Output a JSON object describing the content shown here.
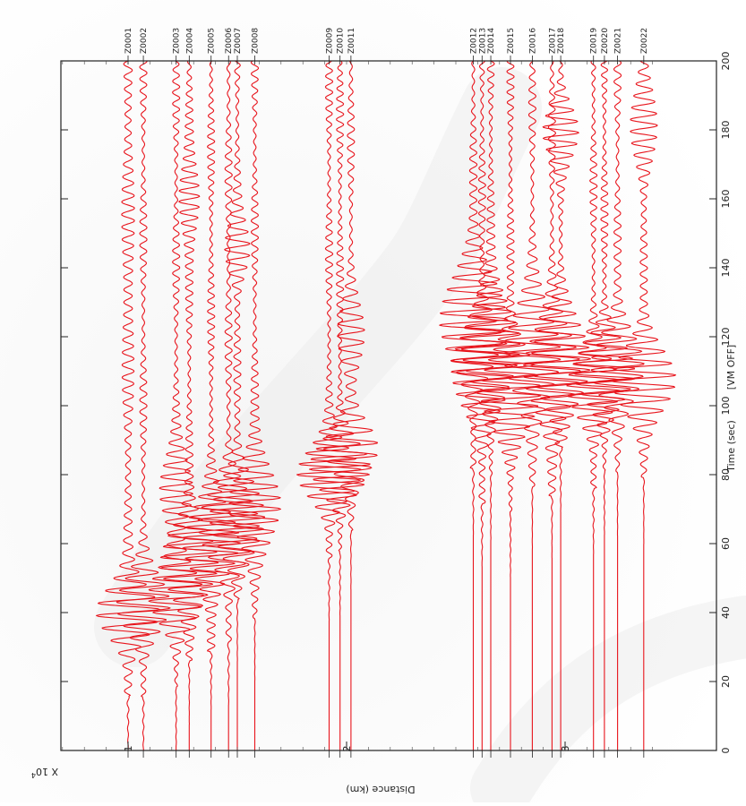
{
  "chart_data": {
    "type": "line",
    "orientation": "rotated-90: time runs vertically (bottom=0, top=200), traces are vertical wiggles positioned by distance",
    "time_axis": {
      "label": "Time (sec)",
      "annotation": "[VM OFF]",
      "range": [
        0,
        200
      ],
      "ticks": [
        0,
        20,
        40,
        60,
        80,
        100,
        120,
        140,
        160,
        180,
        200
      ]
    },
    "distance_axis": {
      "label": "Distance (km)",
      "multiplier_label": "X 10^4",
      "multiplier_text": "X 10",
      "multiplier_exp": "4",
      "ticks": [
        {
          "label": "1",
          "value": 1
        },
        {
          "label": "2",
          "value": 2
        },
        {
          "label": "3",
          "value": 3
        }
      ]
    },
    "line_color": "#e8141c",
    "series": [
      {
        "name": "Z0001",
        "distance": 1.0,
        "packets": [
          {
            "t": 40,
            "amp": 1.0,
            "width": 10
          },
          {
            "t": 140,
            "amp": 0.1,
            "width": 60
          }
        ]
      },
      {
        "name": "Z0002",
        "distance": 1.07,
        "packets": [
          {
            "t": 42,
            "amp": 0.8,
            "width": 11
          }
        ]
      },
      {
        "name": "Z0003",
        "distance": 1.22,
        "packets": [
          {
            "t": 45,
            "amp": 0.8,
            "width": 11
          },
          {
            "t": 75,
            "amp": 0.5,
            "width": 12
          }
        ]
      },
      {
        "name": "Z0004",
        "distance": 1.28,
        "packets": [
          {
            "t": 55,
            "amp": 0.9,
            "width": 13
          },
          {
            "t": 160,
            "amp": 0.3,
            "width": 12
          }
        ]
      },
      {
        "name": "Z0005",
        "distance": 1.38,
        "packets": [
          {
            "t": 60,
            "amp": 0.9,
            "width": 13
          }
        ]
      },
      {
        "name": "Z0006",
        "distance": 1.46,
        "packets": [
          {
            "t": 65,
            "amp": 0.9,
            "width": 14
          }
        ]
      },
      {
        "name": "Z0007",
        "distance": 1.5,
        "packets": [
          {
            "t": 68,
            "amp": 0.8,
            "width": 14
          },
          {
            "t": 145,
            "amp": 0.35,
            "width": 10
          }
        ]
      },
      {
        "name": "Z0008",
        "distance": 1.58,
        "packets": [
          {
            "t": 72,
            "amp": 0.8,
            "width": 14
          }
        ]
      },
      {
        "name": "Z0009",
        "distance": 1.92,
        "packets": [
          {
            "t": 80,
            "amp": 1.0,
            "width": 10
          }
        ]
      },
      {
        "name": "Z0010",
        "distance": 1.97,
        "packets": [
          {
            "t": 82,
            "amp": 0.9,
            "width": 10
          }
        ]
      },
      {
        "name": "Z0011",
        "distance": 2.02,
        "packets": [
          {
            "t": 88,
            "amp": 0.8,
            "width": 10
          },
          {
            "t": 120,
            "amp": 0.35,
            "width": 12
          }
        ]
      },
      {
        "name": "Z0012",
        "distance": 2.58,
        "packets": [
          {
            "t": 125,
            "amp": 1.0,
            "width": 18
          }
        ]
      },
      {
        "name": "Z0013",
        "distance": 2.62,
        "packets": [
          {
            "t": 110,
            "amp": 0.9,
            "width": 16
          }
        ]
      },
      {
        "name": "Z0014",
        "distance": 2.66,
        "packets": [
          {
            "t": 118,
            "amp": 0.9,
            "width": 16
          }
        ]
      },
      {
        "name": "Z0015",
        "distance": 2.75,
        "packets": [
          {
            "t": 105,
            "amp": 0.9,
            "width": 15
          }
        ]
      },
      {
        "name": "Z0016",
        "distance": 2.85,
        "packets": [
          {
            "t": 115,
            "amp": 0.9,
            "width": 16
          }
        ]
      },
      {
        "name": "Z0017",
        "distance": 2.94,
        "packets": [
          {
            "t": 110,
            "amp": 0.9,
            "width": 15
          }
        ]
      },
      {
        "name": "Z0018",
        "distance": 2.98,
        "packets": [
          {
            "t": 112,
            "amp": 0.9,
            "width": 16
          },
          {
            "t": 180,
            "amp": 0.5,
            "width": 10
          }
        ]
      },
      {
        "name": "Z0019",
        "distance": 3.13,
        "packets": [
          {
            "t": 105,
            "amp": 0.8,
            "width": 12
          }
        ]
      },
      {
        "name": "Z0020",
        "distance": 3.18,
        "packets": [
          {
            "t": 110,
            "amp": 0.9,
            "width": 12
          }
        ]
      },
      {
        "name": "Z0021",
        "distance": 3.24,
        "packets": [
          {
            "t": 112,
            "amp": 0.8,
            "width": 13
          }
        ]
      },
      {
        "name": "Z0022",
        "distance": 3.36,
        "packets": [
          {
            "t": 108,
            "amp": 1.0,
            "width": 12
          },
          {
            "t": 180,
            "amp": 0.35,
            "width": 14
          }
        ]
      }
    ]
  }
}
